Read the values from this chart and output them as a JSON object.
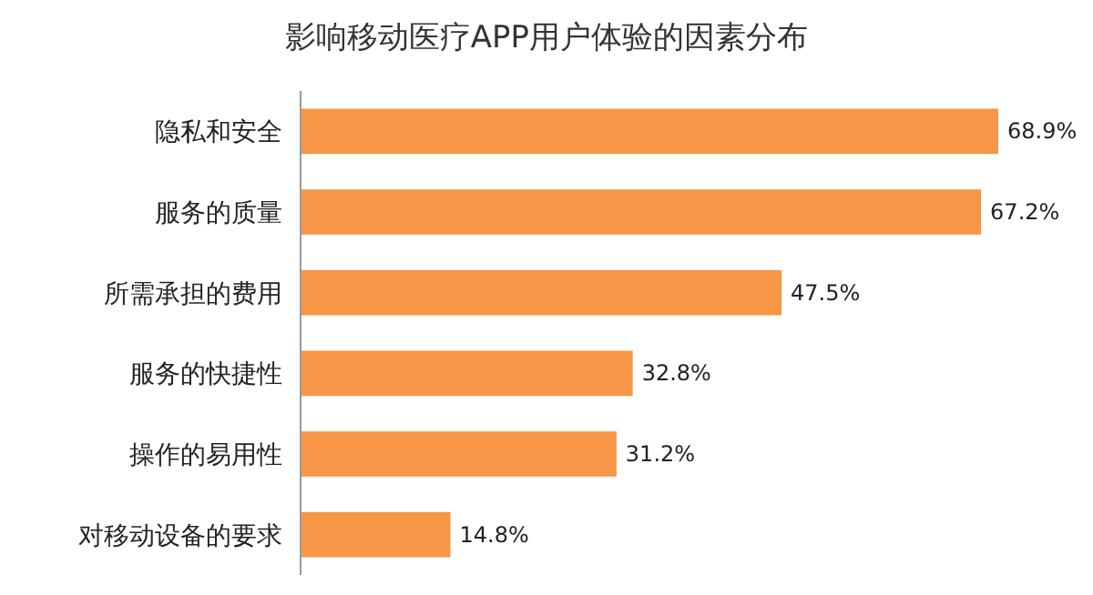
{
  "chart_data": {
    "type": "bar",
    "orientation": "horizontal",
    "title": "影响移动医疗APP用户体验的因素分布",
    "categories": [
      "隐私和安全",
      "服务的质量",
      "所需承担的费用",
      "服务的快捷性",
      "操作的易用性",
      "对移动设备的要求"
    ],
    "values": [
      68.9,
      67.2,
      47.5,
      32.8,
      31.2,
      14.8
    ],
    "value_labels": [
      "68.9%",
      "67.2%",
      "47.5%",
      "32.8%",
      "31.2%",
      "14.8%"
    ],
    "color": "#f79646"
  }
}
